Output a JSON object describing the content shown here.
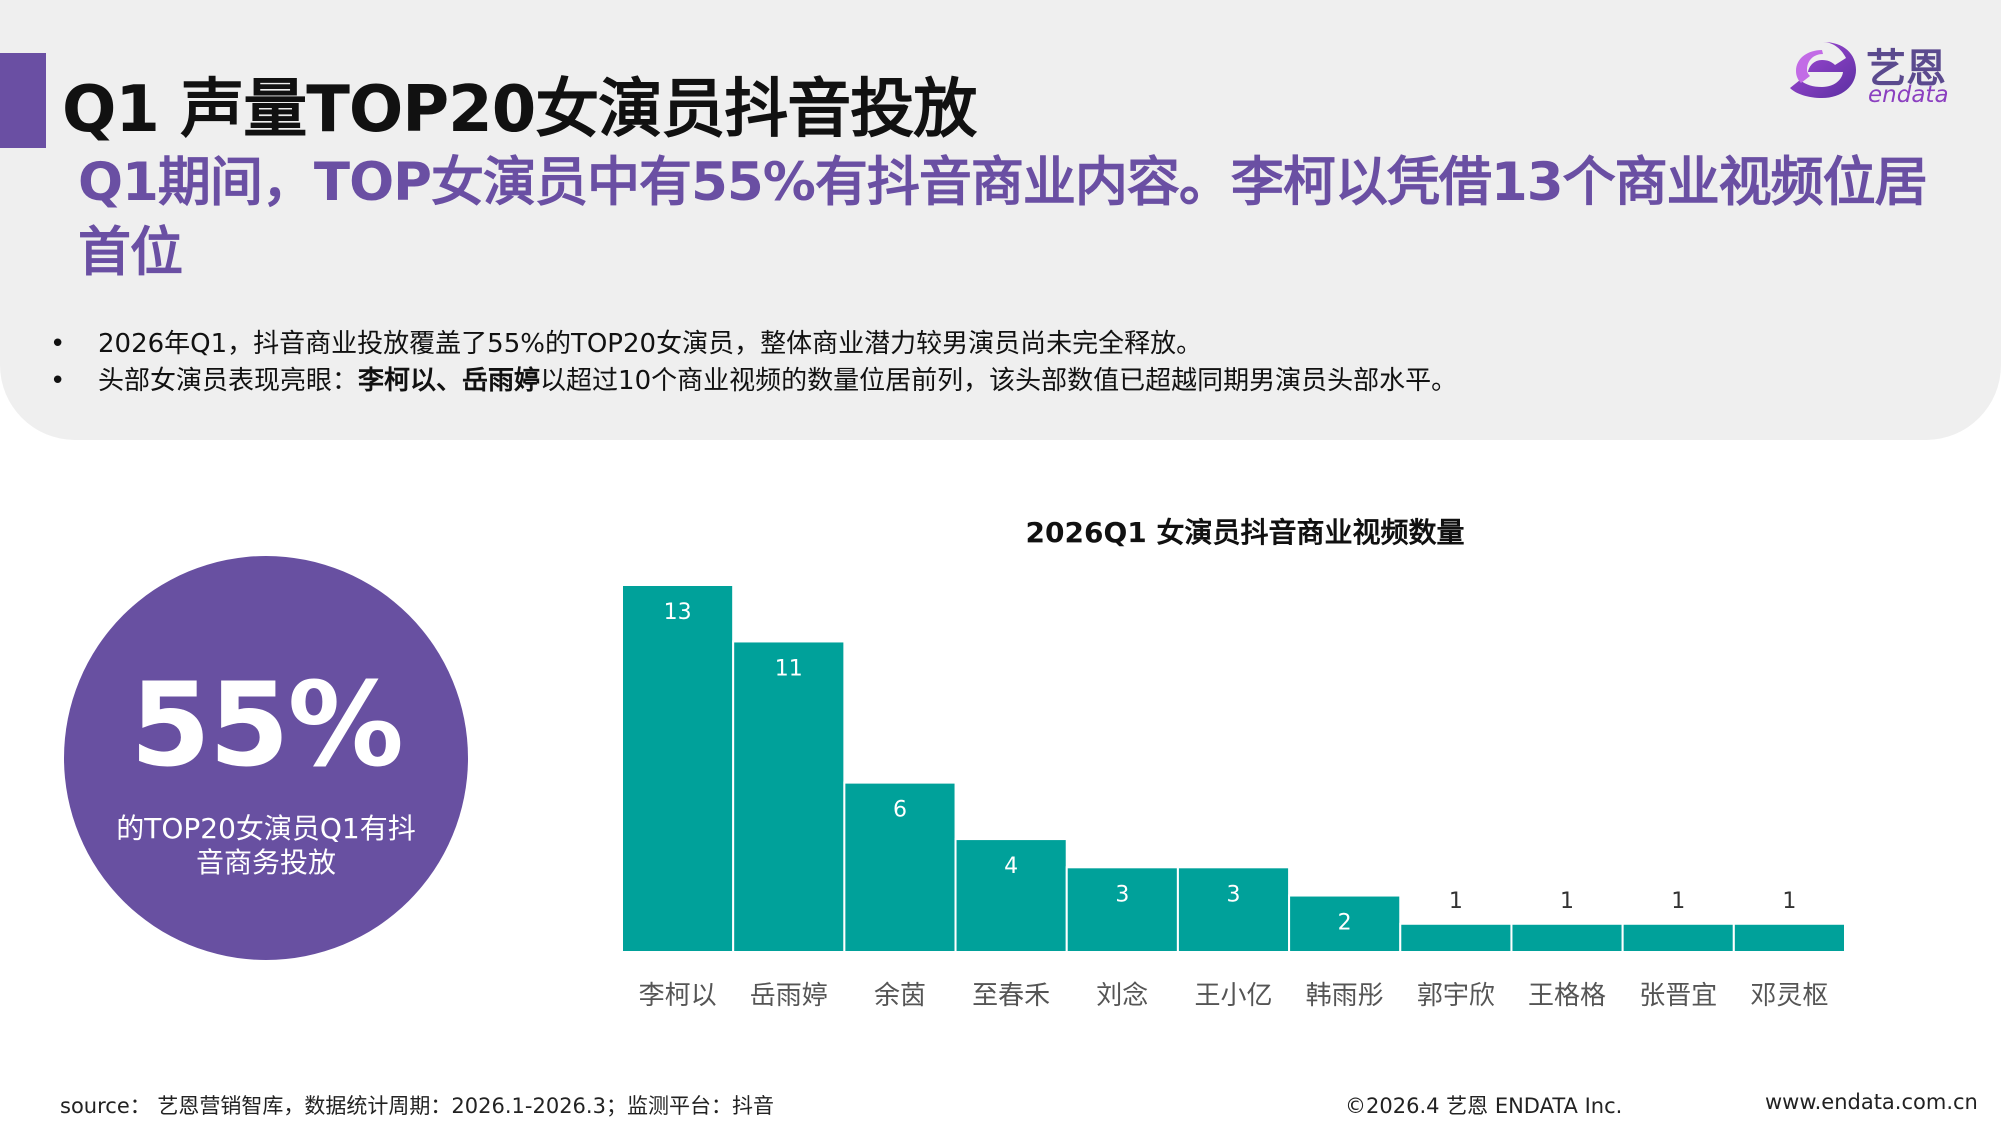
{
  "header": {
    "title": "Q1 声量TOP20女演员抖音投放",
    "headline": "Q1期间，TOP女演员中有55%有抖音商业内容。李柯以凭借13个商业视频位居首位"
  },
  "logo": {
    "cn": "艺恩",
    "en": "endata"
  },
  "bullets": [
    {
      "marker": "•",
      "text": "2026年Q1，抖音商业投放覆盖了55%的TOP20女演员，整体商业潜力较男演员尚未完全释放。"
    },
    {
      "marker": "•",
      "prefix": "头部女演员表现亮眼：",
      "bold": "李柯以、岳雨婷",
      "suffix": "以超过10个商业视频的数量位居前列，该头部数值已超越同期男演员头部水平。"
    }
  ],
  "highlight": {
    "value": "55%",
    "caption": "的TOP20女演员Q1有抖音商务投放"
  },
  "chart_data": {
    "type": "bar",
    "title": "2026Q1 女演员抖音商业视频数量",
    "categories": [
      "李柯以",
      "岳雨婷",
      "余茵",
      "至春禾",
      "刘念",
      "王小亿",
      "韩雨彤",
      "郭宇欣",
      "王格格",
      "张晋宜",
      "邓灵枢"
    ],
    "values": [
      13,
      11,
      6,
      4,
      3,
      3,
      2,
      1,
      1,
      1,
      1
    ],
    "ylim": [
      0,
      13
    ],
    "grid": false,
    "legend": "none",
    "bar_color": "#00a19a",
    "label_color_inside": "#ffffff",
    "label_color_outside": "#333333",
    "tick_label_color": "#555555"
  },
  "footer": {
    "source": "source： 艺恩营销智库，数据统计周期：2026.1-2026.3；监测平台：抖音",
    "copyright": "©2026.4  艺恩 ENDATA Inc.",
    "url": "www.endata.com.cn"
  },
  "colors": {
    "brand_purple": "#6a4fa3",
    "circle_purple": "#6850a1",
    "teal": "#00a19a",
    "panel_gray": "#efefef"
  }
}
